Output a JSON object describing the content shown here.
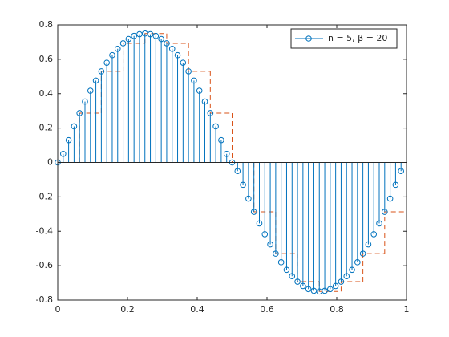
{
  "chart_data": {
    "type": "stem",
    "xlim": [
      0,
      1
    ],
    "ylim": [
      -0.8,
      0.8
    ],
    "xticks": [
      0,
      0.2,
      0.4,
      0.6,
      0.8,
      1
    ],
    "yticks": [
      -0.8,
      -0.6,
      -0.4,
      -0.2,
      0,
      0.2,
      0.4,
      0.6,
      0.8
    ],
    "legend": "northeast",
    "series": [
      {
        "name": "n = 5, β = 20",
        "color": "#0072bd",
        "marker": "circle",
        "x": [
          0,
          0.015625,
          0.03125,
          0.046875,
          0.0625,
          0.078125,
          0.09375,
          0.109375,
          0.125,
          0.140625,
          0.15625,
          0.171875,
          0.1875,
          0.203125,
          0.21875,
          0.234375,
          0.25,
          0.265625,
          0.28125,
          0.296875,
          0.3125,
          0.328125,
          0.34375,
          0.359375,
          0.375,
          0.390625,
          0.40625,
          0.421875,
          0.4375,
          0.453125,
          0.46875,
          0.484375,
          0.5,
          0.515625,
          0.53125,
          0.546875,
          0.5625,
          0.578125,
          0.59375,
          0.609375,
          0.625,
          0.640625,
          0.65625,
          0.671875,
          0.6875,
          0.703125,
          0.71875,
          0.734375,
          0.75,
          0.765625,
          0.78125,
          0.796875,
          0.8125,
          0.828125,
          0.84375,
          0.859375,
          0.875,
          0.890625,
          0.90625,
          0.921875,
          0.9375,
          0.953125,
          0.96875,
          0.984375
        ],
        "values": [
          0,
          0.05,
          0.13,
          0.21,
          0.287,
          0.354,
          0.417,
          0.476,
          0.53,
          0.58,
          0.624,
          0.661,
          0.693,
          0.718,
          0.736,
          0.746,
          0.75,
          0.746,
          0.736,
          0.718,
          0.693,
          0.661,
          0.624,
          0.58,
          0.53,
          0.476,
          0.417,
          0.354,
          0.287,
          0.21,
          0.13,
          0.05,
          0,
          -0.05,
          -0.13,
          -0.21,
          -0.287,
          -0.354,
          -0.417,
          -0.476,
          -0.53,
          -0.58,
          -0.624,
          -0.661,
          -0.693,
          -0.718,
          -0.736,
          -0.746,
          -0.75,
          -0.746,
          -0.736,
          -0.718,
          -0.693,
          -0.661,
          -0.624,
          -0.58,
          -0.53,
          -0.476,
          -0.417,
          -0.354,
          -0.287,
          -0.21,
          -0.13,
          -0.05
        ]
      },
      {
        "type": "stairs",
        "color": "#d95319",
        "dashed": true,
        "x": [
          0,
          0.0625,
          0.125,
          0.1875,
          0.25,
          0.3125,
          0.375,
          0.4375,
          0.5,
          0.5625,
          0.625,
          0.6875,
          0.75,
          0.8125,
          0.875,
          0.9375
        ],
        "values": [
          0,
          0.287,
          0.53,
          0.693,
          0.75,
          0.693,
          0.53,
          0.287,
          0,
          -0.287,
          -0.53,
          -0.693,
          -0.75,
          -0.693,
          -0.53,
          -0.287
        ]
      }
    ]
  }
}
